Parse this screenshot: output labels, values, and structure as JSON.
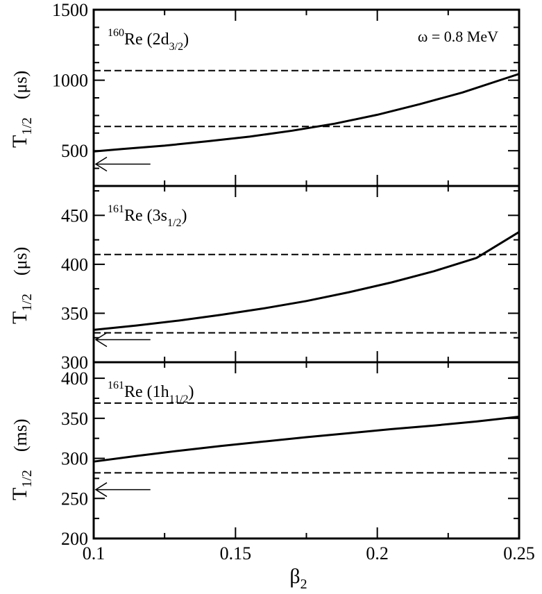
{
  "chart_data": [
    {
      "type": "line",
      "panel": "top",
      "annotation": {
        "superscript": "160",
        "nucleus": "Re",
        "open": " (2d",
        "subscript": "3/2",
        "close": ")"
      },
      "extra_label": "ω = 0.8 MeV",
      "ylabel": {
        "main": "T",
        "sub": "1/2",
        "unit": "(μs)"
      },
      "ylim": [
        250,
        1500
      ],
      "yticks": [
        500,
        1000,
        1500
      ],
      "ytick_labels": [
        "500",
        "1000",
        "1500"
      ],
      "y_minor_step": 125,
      "xlim": [
        0.1,
        0.25
      ],
      "series": [
        {
          "style": "solid",
          "x": [
            0.1,
            0.11,
            0.125,
            0.14,
            0.155,
            0.17,
            0.185,
            0.2,
            0.215,
            0.23,
            0.25
          ],
          "y": [
            495,
            512,
            536,
            567,
            600,
            642,
            692,
            755,
            830,
            913,
            1045
          ]
        }
      ],
      "hlines": [
        {
          "style": "dashed",
          "y": 1068
        },
        {
          "style": "dashed",
          "y": 672
        }
      ],
      "arrow": {
        "y": 405,
        "x_from": 0.12,
        "x_to": 0.1
      }
    },
    {
      "type": "line",
      "panel": "middle",
      "annotation": {
        "superscript": "161",
        "nucleus": "Re",
        "open": " (3s",
        "subscript": "1/2",
        "close": ")"
      },
      "ylabel": {
        "main": "T",
        "sub": "1/2",
        "unit": "(μs)"
      },
      "ylim": [
        300,
        480
      ],
      "yticks": [
        300,
        350,
        400,
        450
      ],
      "ytick_labels": [
        "300",
        "350",
        "400",
        "450"
      ],
      "y_minor_step": 25,
      "xlim": [
        0.1,
        0.25
      ],
      "series": [
        {
          "style": "solid",
          "x": [
            0.1,
            0.115,
            0.13,
            0.145,
            0.16,
            0.175,
            0.19,
            0.205,
            0.22,
            0.235,
            0.25
          ],
          "y": [
            333,
            337.5,
            342.5,
            348.5,
            355,
            362.5,
            371.5,
            381.5,
            393,
            406.5,
            433
          ]
        }
      ],
      "hlines": [
        {
          "style": "dashed",
          "y": 410
        },
        {
          "style": "dashed",
          "y": 330
        }
      ],
      "arrow": {
        "y": 323,
        "x_from": 0.12,
        "x_to": 0.1
      }
    },
    {
      "type": "line",
      "panel": "bottom",
      "annotation": {
        "superscript": "161",
        "nucleus": "Re",
        "open": " (1h",
        "subscript": "11/2",
        "close": ")"
      },
      "ylabel": {
        "main": "T",
        "sub": "1/2",
        "unit": "(ms)"
      },
      "ylim": [
        200,
        420
      ],
      "yticks": [
        200,
        250,
        300,
        350,
        400
      ],
      "ytick_labels": [
        "200",
        "250",
        "300",
        "350",
        "400"
      ],
      "y_minor_step": 25,
      "xlim": [
        0.1,
        0.25
      ],
      "xticks": [
        0.1,
        0.15,
        0.2,
        0.25
      ],
      "xtick_labels": [
        "0.1",
        "0.15",
        "0.2",
        "0.25"
      ],
      "x_minor_step": 0.025,
      "xlabel": {
        "main": "β",
        "sub": "2"
      },
      "series": [
        {
          "style": "solid",
          "x": [
            0.1,
            0.115,
            0.13,
            0.145,
            0.16,
            0.175,
            0.19,
            0.205,
            0.22,
            0.235,
            0.25
          ],
          "y": [
            296,
            303,
            309.5,
            315.5,
            321,
            326.5,
            331.5,
            336.5,
            341,
            346,
            352
          ]
        }
      ],
      "hlines": [
        {
          "style": "dashed",
          "y": 369
        },
        {
          "style": "dashed",
          "y": 282
        }
      ],
      "arrow": {
        "y": 261,
        "x_from": 0.12,
        "x_to": 0.1
      }
    }
  ]
}
